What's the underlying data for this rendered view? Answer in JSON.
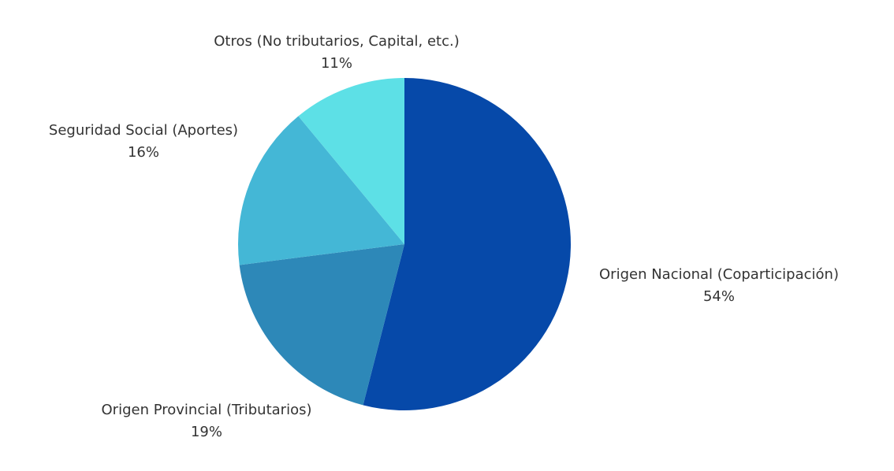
{
  "chart_data": {
    "type": "pie",
    "categories": [
      "Origen Nacional (Coparticipación)",
      "Origen Provincial (Tributarios)",
      "Seguridad Social (Aportes)",
      "Otros (No tributarios, Capital, etc.)"
    ],
    "values": [
      54,
      19,
      16,
      11
    ],
    "value_labels": [
      "54%",
      "19%",
      "16%",
      "11%"
    ],
    "colors": [
      "#0649a9",
      "#2d88b8",
      "#44b7d6",
      "#5de0e6"
    ]
  }
}
